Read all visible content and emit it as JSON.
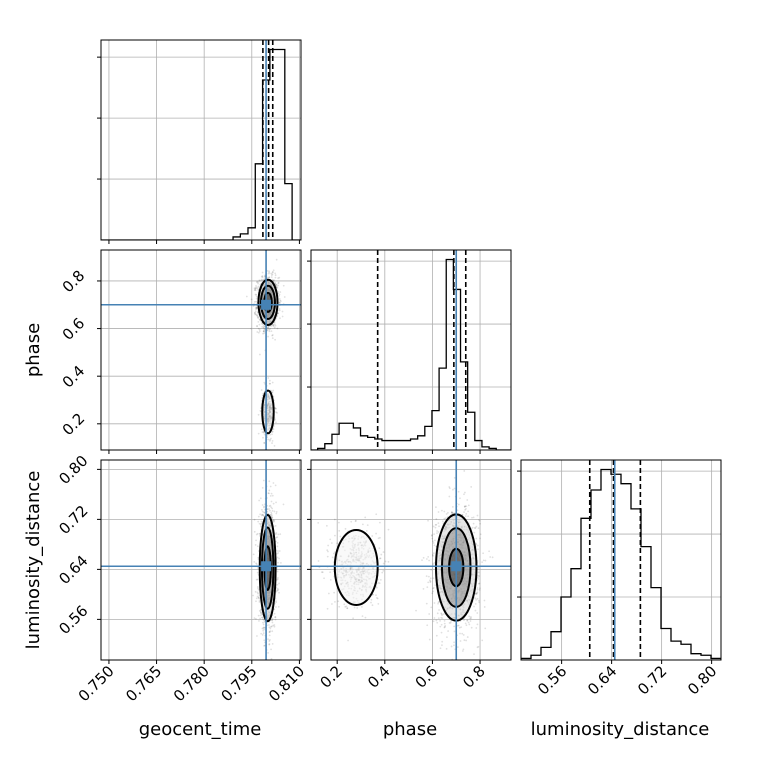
{
  "chart_data": {
    "type": "corner",
    "parameters": [
      "geocent_time",
      "phase",
      "luminosity_distance"
    ],
    "axis_labels": [
      "geocent_time",
      "phase",
      "luminosity_distance"
    ],
    "grid": true,
    "colors": {
      "truth": "#4682b4",
      "hist": "#000000",
      "quantile": "#000000",
      "grid": "#b0b0b0",
      "points": "#000000"
    },
    "ranges": {
      "geocent_time": [
        0.7475,
        0.8105
      ],
      "phase": [
        0.09,
        0.93
      ],
      "luminosity_distance": [
        0.495,
        0.815
      ]
    },
    "ticks": {
      "geocent_time": {
        "values": [
          0.75,
          0.765,
          0.78,
          0.795,
          0.81
        ],
        "labels": [
          "0.750",
          "0.765",
          "0.780",
          "0.795",
          "0.810"
        ]
      },
      "phase": {
        "values": [
          0.2,
          0.4,
          0.6,
          0.8
        ],
        "labels": [
          "0.2",
          "0.4",
          "0.6",
          "0.8"
        ]
      },
      "luminosity_distance": {
        "values": [
          0.56,
          0.64,
          0.72,
          0.8
        ],
        "labels": [
          "0.56",
          "0.64",
          "0.72",
          "0.80"
        ]
      }
    },
    "truths": {
      "geocent_time": 0.7995,
      "phase": 0.7,
      "luminosity_distance": 0.645
    },
    "quantiles": {
      "geocent_time": [
        0.7985,
        0.8003,
        0.8016
      ],
      "phase": [
        0.37,
        0.69,
        0.74
      ],
      "luminosity_distance": [
        0.605,
        0.643,
        0.686
      ]
    },
    "histograms": {
      "geocent_time": {
        "edges": [
          0.7475,
          0.7891,
          0.7914,
          0.7938,
          0.7961,
          0.7984,
          0.8007,
          0.8031,
          0.8054,
          0.8077,
          0.8105
        ],
        "counts": [
          0,
          2,
          4,
          8,
          50,
          105,
          125,
          125,
          37,
          0
        ]
      },
      "phase": {
        "edges": [
          0.09,
          0.118,
          0.148,
          0.178,
          0.208,
          0.238,
          0.268,
          0.298,
          0.328,
          0.358,
          0.388,
          0.418,
          0.448,
          0.478,
          0.508,
          0.538,
          0.568,
          0.598,
          0.628,
          0.658,
          0.688,
          0.718,
          0.748,
          0.778,
          0.808,
          0.838,
          0.868,
          0.898,
          0.93
        ],
        "counts": [
          0,
          1,
          4,
          10,
          17,
          17,
          14,
          9,
          8,
          7,
          6,
          6,
          6,
          6,
          7,
          9,
          15,
          25,
          52,
          121,
          102,
          56,
          24,
          6,
          2,
          1,
          0,
          0
        ]
      },
      "luminosity_distance": {
        "edges": [
          0.495,
          0.511,
          0.527,
          0.543,
          0.559,
          0.575,
          0.591,
          0.607,
          0.623,
          0.639,
          0.655,
          0.671,
          0.687,
          0.703,
          0.719,
          0.735,
          0.751,
          0.767,
          0.783,
          0.799,
          0.815
        ],
        "counts": [
          1,
          3,
          8,
          18,
          40,
          58,
          90,
          108,
          121,
          118,
          112,
          96,
          72,
          46,
          20,
          12,
          10,
          4,
          3,
          1
        ]
      }
    },
    "contours_2d": [
      {
        "x": "geocent_time",
        "y": "phase",
        "modes": [
          {
            "cx": 0.8001,
            "cy": 0.71,
            "levels": [
              [
                0.0012,
                0.04
              ],
              [
                0.0022,
                0.07
              ],
              [
                0.003,
                0.095
              ]
            ]
          },
          {
            "cx": 0.8001,
            "cy": 0.25,
            "levels": [
              [
                0.0018,
                0.09
              ]
            ]
          }
        ]
      },
      {
        "x": "geocent_time",
        "y": "luminosity_distance",
        "modes": [
          {
            "cx": 0.8,
            "cy": 0.642,
            "levels": [
              [
                0.001,
                0.035
              ],
              [
                0.0018,
                0.065
              ],
              [
                0.0025,
                0.085
              ]
            ]
          }
        ]
      },
      {
        "x": "phase",
        "y": "luminosity_distance",
        "modes": [
          {
            "cx": 0.7,
            "cy": 0.643,
            "levels": [
              [
                0.03,
                0.03
              ],
              [
                0.06,
                0.063
              ],
              [
                0.085,
                0.085
              ]
            ]
          },
          {
            "cx": 0.28,
            "cy": 0.643,
            "levels": [
              [
                0.09,
                0.06
              ]
            ]
          }
        ]
      }
    ]
  }
}
